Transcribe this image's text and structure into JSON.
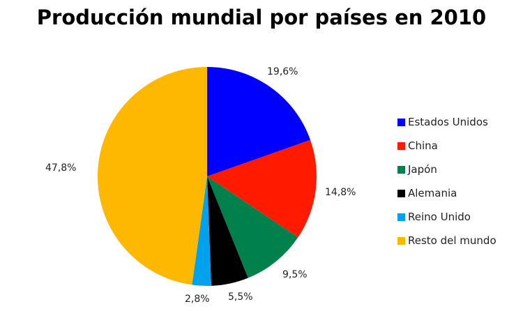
{
  "chart_data": {
    "type": "pie",
    "title": "Producción mundial por países en 2010",
    "categories": [
      "Estados Unidos",
      "China",
      "Japón",
      "Alemania",
      "Reino Unido",
      "Resto del mundo"
    ],
    "values": [
      19.6,
      14.8,
      9.5,
      5.5,
      2.8,
      47.8
    ],
    "value_labels": [
      "19,6%",
      "14,8%",
      "9,5%",
      "5,5%",
      "2,8%",
      "47,8%"
    ],
    "colors": [
      "#0000ff",
      "#ff1a00",
      "#00804a",
      "#000000",
      "#00a2ee",
      "#ffb800"
    ],
    "start_angle": "12 o'clock, clockwise",
    "legend_position": "right"
  },
  "title": "Producción mundial por países en 2010",
  "legend": [
    {
      "label": "Estados Unidos",
      "color": "#0000ff"
    },
    {
      "label": "China",
      "color": "#ff1a00"
    },
    {
      "label": "Japón",
      "color": "#00804a"
    },
    {
      "label": "Alemania",
      "color": "#000000"
    },
    {
      "label": "Reino Unido",
      "color": "#00a2ee"
    },
    {
      "label": "Resto del mundo",
      "color": "#ffb800"
    }
  ],
  "labels": {
    "us": "19,6%",
    "china": "14,8%",
    "japan": "9,5%",
    "germany": "5,5%",
    "uk": "2,8%",
    "rest": "47,8%"
  }
}
